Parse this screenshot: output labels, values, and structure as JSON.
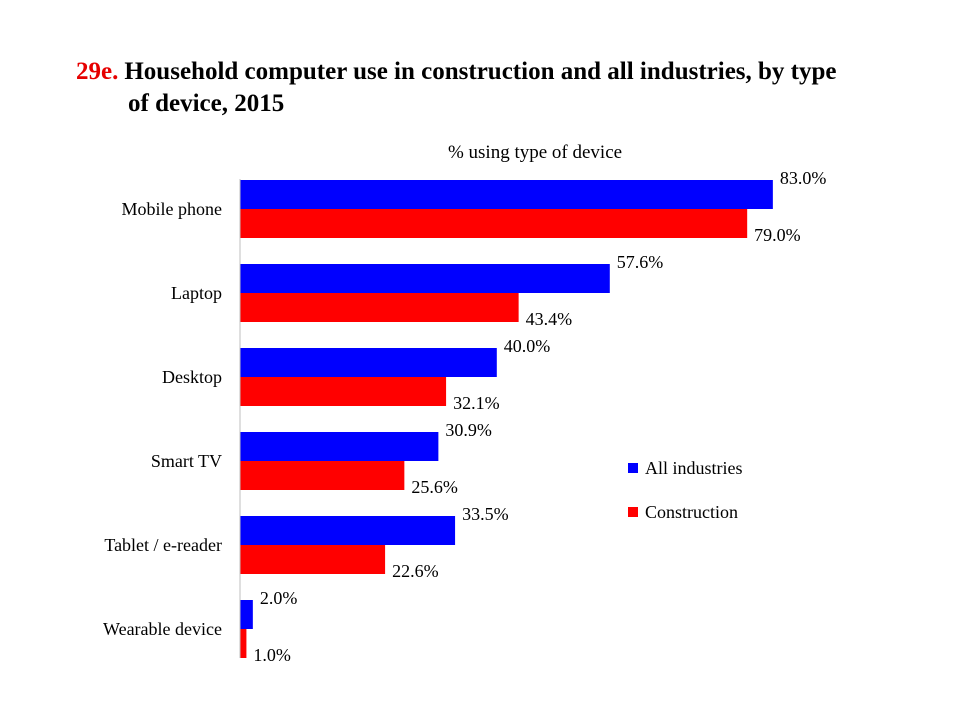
{
  "title": {
    "number": "29e.",
    "line1": "Household computer use in construction and all industries, by type",
    "line2": "of device, 2015"
  },
  "chart_data": {
    "type": "bar",
    "orientation": "horizontal",
    "title": "29e. Household computer use in construction and all industries, by type of device, 2015",
    "subtitle": "% using type of device",
    "categories": [
      "Mobile phone",
      "Laptop",
      "Desktop",
      "Smart TV",
      "Tablet / e-reader",
      "Wearable device"
    ],
    "series": [
      {
        "name": "All industries",
        "color": "#0000ff",
        "values": [
          83.0,
          57.6,
          40.0,
          30.9,
          33.5,
          2.0
        ],
        "labels": [
          "83.0%",
          "57.6%",
          "40.0%",
          "30.9%",
          "33.5%",
          "2.0%"
        ]
      },
      {
        "name": "Construction",
        "color": "#ff0000",
        "values": [
          79.0,
          43.4,
          32.1,
          25.6,
          22.6,
          1.0
        ],
        "labels": [
          "79.0%",
          "43.4%",
          "32.1%",
          "25.6%",
          "22.6%",
          "1.0%"
        ]
      }
    ],
    "xlim": [
      0,
      100
    ],
    "grid": false,
    "legend_position": "center-right"
  }
}
